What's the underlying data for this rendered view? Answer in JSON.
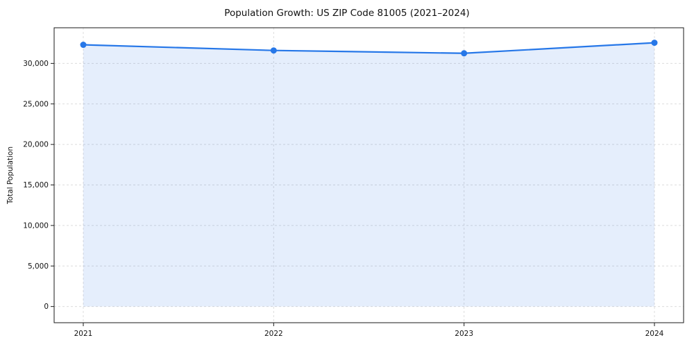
{
  "chart_data": {
    "type": "line",
    "title": "Population Growth: US ZIP Code 81005 (2021–2024)",
    "xlabel": "",
    "ylabel": "Total Population",
    "categories": [
      "2021",
      "2022",
      "2023",
      "2024"
    ],
    "series": [
      {
        "name": "Total Population",
        "values": [
          32300,
          31600,
          31250,
          32550
        ]
      }
    ],
    "yticks": [
      0,
      5000,
      10000,
      15000,
      20000,
      25000,
      30000
    ],
    "ytick_labels": [
      "0",
      "5,000",
      "10,000",
      "15,000",
      "20,000",
      "25,000",
      "30,000"
    ],
    "ylim": [
      -2000,
      34400
    ],
    "grid": "dashed",
    "legend": "none",
    "colors": {
      "line": "#2677e8",
      "marker": "#2677e8",
      "area_fill": "rgba(38,119,232,0.12)",
      "grid": "#dcdcdc",
      "axis": "#1a1a1a",
      "text": "#111111"
    }
  }
}
